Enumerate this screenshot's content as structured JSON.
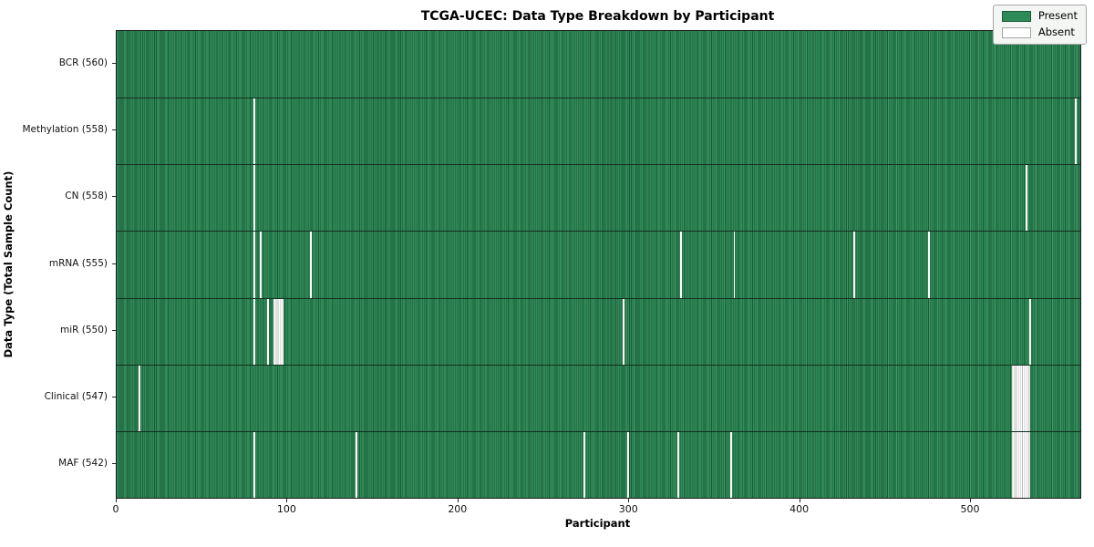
{
  "title": "TCGA-UCEC: Data Type Breakdown by Participant",
  "x_axis_label": "Participant",
  "y_axis_label": "Data Type (Total Sample Count)",
  "legend": {
    "present_label": "Present",
    "absent_label": "Absent"
  },
  "colors": {
    "present": "#2e8b57",
    "present_edge": "#1c5b39",
    "absent": "#ffffff",
    "absent_edge": "#bfbfbf",
    "frame": "#1a1a1a",
    "row_divider": "#12301f",
    "legend_bg": "#f3f6f3",
    "legend_border": "#a6a6a6"
  },
  "chart_data": {
    "type": "heatmap",
    "title": "TCGA-UCEC: Data Type Breakdown by Participant",
    "xlabel": "Participant",
    "ylabel": "Data Type (Total Sample Count)",
    "legend_entries": [
      "Present",
      "Absent"
    ],
    "legend_position": "upper right",
    "cell_states": {
      "present": "Present",
      "absent": "Absent"
    },
    "x_axis": {
      "ticks": [
        0,
        100,
        200,
        300,
        400,
        500
      ],
      "range": [
        0,
        564
      ]
    },
    "n_participants": 564,
    "rows": [
      {
        "label": "BCR (560)",
        "data_type": "BCR",
        "total_sample_count": 560,
        "absent_runs": []
      },
      {
        "label": "Methylation (558)",
        "data_type": "Methylation",
        "total_sample_count": 558,
        "absent_runs": [
          [
            80,
            1
          ],
          [
            561,
            1
          ]
        ]
      },
      {
        "label": "CN (558)",
        "data_type": "CN",
        "total_sample_count": 558,
        "absent_runs": [
          [
            80,
            1
          ],
          [
            532,
            1
          ]
        ]
      },
      {
        "label": "mRNA (555)",
        "data_type": "mRNA",
        "total_sample_count": 555,
        "absent_runs": [
          [
            80,
            1
          ],
          [
            84,
            1
          ],
          [
            113,
            1
          ],
          [
            330,
            1
          ],
          [
            361,
            1
          ],
          [
            431,
            1
          ],
          [
            475,
            1
          ]
        ]
      },
      {
        "label": "miR (550)",
        "data_type": "miR",
        "total_sample_count": 550,
        "absent_runs": [
          [
            80,
            1
          ],
          [
            88,
            1
          ],
          [
            92,
            6
          ],
          [
            296,
            1
          ],
          [
            534,
            1
          ]
        ]
      },
      {
        "label": "Clinical (547)",
        "data_type": "Clinical",
        "total_sample_count": 547,
        "absent_runs": [
          [
            13,
            1
          ],
          [
            524,
            11
          ]
        ]
      },
      {
        "label": "MAF (542)",
        "data_type": "MAF",
        "total_sample_count": 542,
        "absent_runs": [
          [
            80,
            1
          ],
          [
            140,
            1
          ],
          [
            273,
            1
          ],
          [
            299,
            1
          ],
          [
            328,
            1
          ],
          [
            359,
            1
          ],
          [
            524,
            11
          ]
        ]
      }
    ]
  }
}
